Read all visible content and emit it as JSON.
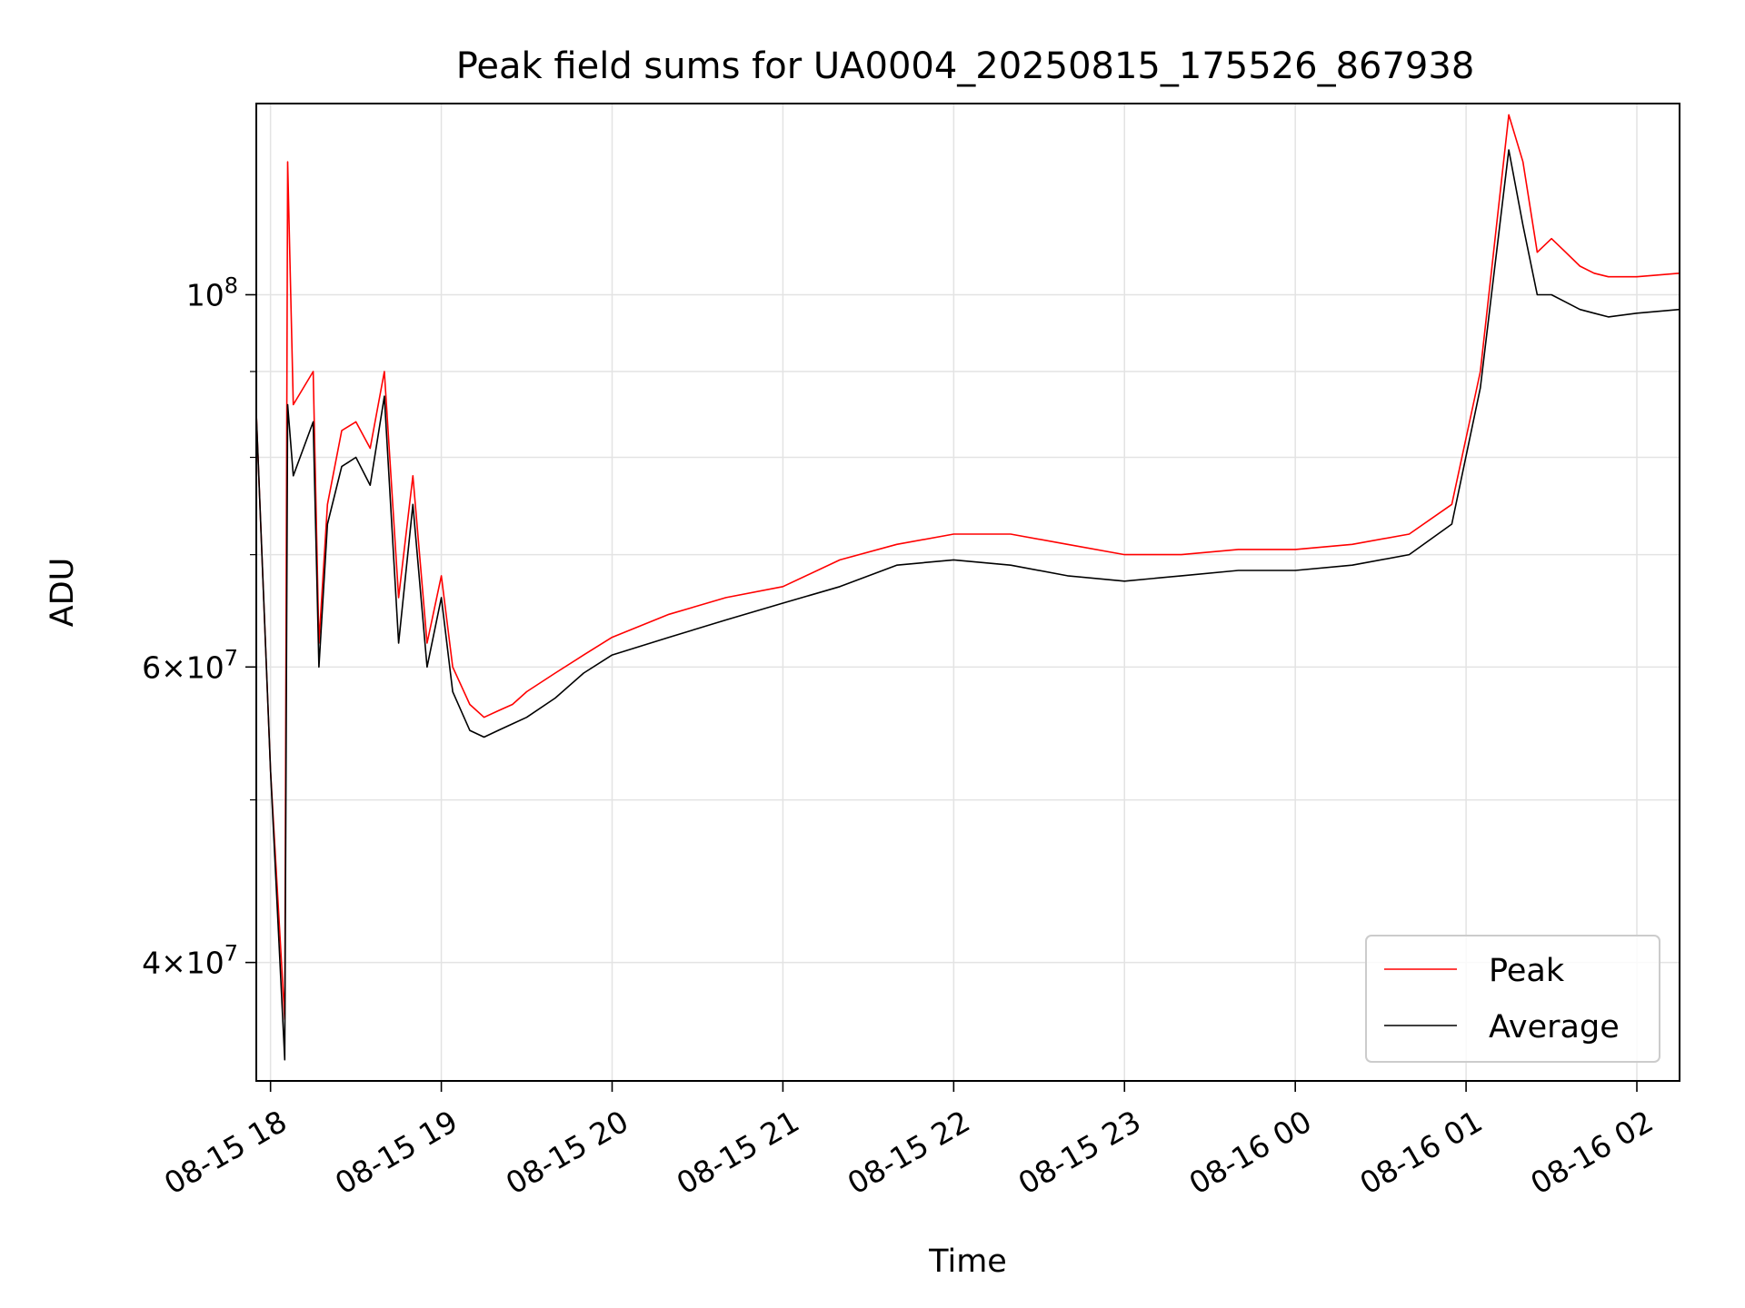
{
  "chart_data": {
    "type": "line",
    "title": "Peak field sums for UA0004_20250815_175526_867938",
    "xlabel": "Time",
    "ylabel": "ADU",
    "y_scale": "log",
    "grid": true,
    "legend_position": "bottom-right",
    "xlim": [
      "2025-08-15 17:55",
      "2025-08-16 02:15"
    ],
    "ylim": [
      34000000,
      130000000
    ],
    "x_ticks": [
      {
        "value": "2025-08-15 18:00",
        "label": "08-15 18"
      },
      {
        "value": "2025-08-15 19:00",
        "label": "08-15 19"
      },
      {
        "value": "2025-08-15 20:00",
        "label": "08-15 20"
      },
      {
        "value": "2025-08-15 21:00",
        "label": "08-15 21"
      },
      {
        "value": "2025-08-15 22:00",
        "label": "08-15 22"
      },
      {
        "value": "2025-08-15 23:00",
        "label": "08-15 23"
      },
      {
        "value": "2025-08-16 00:00",
        "label": "08-16 00"
      },
      {
        "value": "2025-08-16 01:00",
        "label": "08-16 01"
      },
      {
        "value": "2025-08-16 02:00",
        "label": "08-16 02"
      }
    ],
    "y_major_ticks": [
      {
        "value": 40000000,
        "mantissa": "4",
        "base": "10",
        "exponent": "7"
      },
      {
        "value": 60000000,
        "mantissa": "6",
        "base": "10",
        "exponent": "7"
      },
      {
        "value": 100000000,
        "mantissa": "",
        "base": "10",
        "exponent": "8"
      }
    ],
    "y_minor_ticks": [
      50000000,
      70000000,
      80000000,
      90000000
    ],
    "series": [
      {
        "name": "Peak",
        "color": "#ff0000",
        "x": [
          "2025-08-15 17:55",
          "2025-08-15 18:00",
          "2025-08-15 18:05",
          "2025-08-15 18:06",
          "2025-08-15 18:08",
          "2025-08-15 18:15",
          "2025-08-15 18:17",
          "2025-08-15 18:20",
          "2025-08-15 18:25",
          "2025-08-15 18:30",
          "2025-08-15 18:35",
          "2025-08-15 18:40",
          "2025-08-15 18:45",
          "2025-08-15 18:50",
          "2025-08-15 18:55",
          "2025-08-15 19:00",
          "2025-08-15 19:04",
          "2025-08-15 19:10",
          "2025-08-15 19:15",
          "2025-08-15 19:20",
          "2025-08-15 19:25",
          "2025-08-15 19:30",
          "2025-08-15 19:40",
          "2025-08-15 19:50",
          "2025-08-15 20:00",
          "2025-08-15 20:20",
          "2025-08-15 20:40",
          "2025-08-15 21:00",
          "2025-08-15 21:20",
          "2025-08-15 21:40",
          "2025-08-15 22:00",
          "2025-08-15 22:20",
          "2025-08-15 22:40",
          "2025-08-15 23:00",
          "2025-08-15 23:20",
          "2025-08-15 23:40",
          "2025-08-16 00:00",
          "2025-08-16 00:20",
          "2025-08-16 00:40",
          "2025-08-16 00:55",
          "2025-08-16 01:05",
          "2025-08-16 01:15",
          "2025-08-16 01:20",
          "2025-08-16 01:25",
          "2025-08-16 01:30",
          "2025-08-16 01:35",
          "2025-08-16 01:40",
          "2025-08-16 01:45",
          "2025-08-16 01:50",
          "2025-08-16 02:00",
          "2025-08-16 02:15"
        ],
        "y": [
          85000000,
          52000000,
          37000000,
          120000000,
          86000000,
          90000000,
          62000000,
          75000000,
          83000000,
          84000000,
          81000000,
          90000000,
          66000000,
          78000000,
          62000000,
          68000000,
          60000000,
          57000000,
          56000000,
          56500000,
          57000000,
          58000000,
          59500000,
          61000000,
          62500000,
          64500000,
          66000000,
          67000000,
          69500000,
          71000000,
          72000000,
          72000000,
          71000000,
          70000000,
          70000000,
          70500000,
          70500000,
          71000000,
          72000000,
          75000000,
          90000000,
          128000000,
          120000000,
          106000000,
          108000000,
          106000000,
          104000000,
          103000000,
          102500000,
          102500000,
          103000000
        ]
      },
      {
        "name": "Average",
        "color": "#000000",
        "x": [
          "2025-08-15 17:55",
          "2025-08-15 18:00",
          "2025-08-15 18:05",
          "2025-08-15 18:06",
          "2025-08-15 18:08",
          "2025-08-15 18:15",
          "2025-08-15 18:17",
          "2025-08-15 18:20",
          "2025-08-15 18:25",
          "2025-08-15 18:30",
          "2025-08-15 18:35",
          "2025-08-15 18:40",
          "2025-08-15 18:45",
          "2025-08-15 18:50",
          "2025-08-15 18:55",
          "2025-08-15 19:00",
          "2025-08-15 19:04",
          "2025-08-15 19:10",
          "2025-08-15 19:15",
          "2025-08-15 19:20",
          "2025-08-15 19:25",
          "2025-08-15 19:30",
          "2025-08-15 19:40",
          "2025-08-15 19:50",
          "2025-08-15 20:00",
          "2025-08-15 20:20",
          "2025-08-15 20:40",
          "2025-08-15 21:00",
          "2025-08-15 21:20",
          "2025-08-15 21:40",
          "2025-08-15 22:00",
          "2025-08-15 22:20",
          "2025-08-15 22:40",
          "2025-08-15 23:00",
          "2025-08-15 23:20",
          "2025-08-15 23:40",
          "2025-08-16 00:00",
          "2025-08-16 00:20",
          "2025-08-16 00:40",
          "2025-08-16 00:55",
          "2025-08-16 01:05",
          "2025-08-16 01:15",
          "2025-08-16 01:20",
          "2025-08-16 01:25",
          "2025-08-16 01:30",
          "2025-08-16 01:35",
          "2025-08-16 01:40",
          "2025-08-16 01:45",
          "2025-08-16 01:50",
          "2025-08-16 02:00",
          "2025-08-16 02:15"
        ],
        "y": [
          85000000,
          52000000,
          35000000,
          86000000,
          78000000,
          84000000,
          60000000,
          73000000,
          79000000,
          80000000,
          77000000,
          87000000,
          62000000,
          75000000,
          60000000,
          66000000,
          58000000,
          55000000,
          54500000,
          55000000,
          55500000,
          56000000,
          57500000,
          59500000,
          61000000,
          62500000,
          64000000,
          65500000,
          67000000,
          69000000,
          69500000,
          69000000,
          68000000,
          67500000,
          68000000,
          68500000,
          68500000,
          69000000,
          70000000,
          73000000,
          88000000,
          122000000,
          110000000,
          100000000,
          100000000,
          99000000,
          98000000,
          97500000,
          97000000,
          97500000,
          98000000
        ]
      }
    ]
  }
}
